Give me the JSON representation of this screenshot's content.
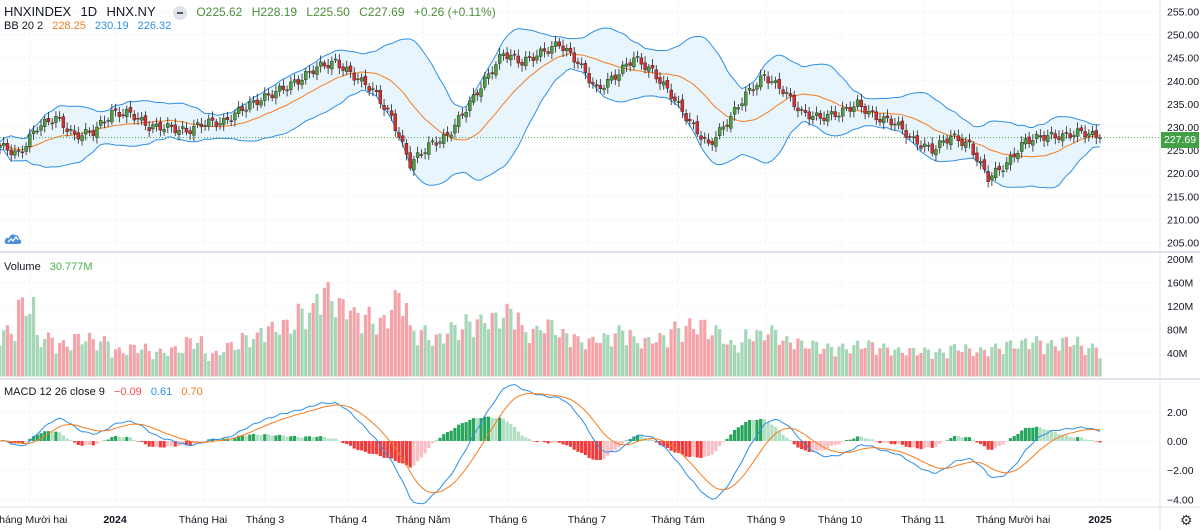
{
  "header": {
    "symbol": "HNXINDEX",
    "interval": "1D",
    "exchange": "HNX.NY",
    "open": "O225.62",
    "high": "H228.19",
    "low": "L225.50",
    "close": "C227.69",
    "change": "+0.26 (+0.11%)"
  },
  "bb": {
    "label": "BB 20 2",
    "basis": "228.25",
    "upper": "230.19",
    "lower": "226.32"
  },
  "volume": {
    "label": "Volume",
    "value": "30.777M"
  },
  "macd": {
    "label": "MACD 12 26 close 9",
    "hist": "−0.09",
    "macd": "0.61",
    "signal": "0.70"
  },
  "last_price_tag": "227.69",
  "colors": {
    "up": "#4c9f3c",
    "down": "#d32f2f",
    "vol_up": "#a5d6b7",
    "vol_down": "#f4a3a8",
    "bb_basis": "#f57c1f",
    "bb_band": "#2e8fe6",
    "bb_fill": "#e3f2fd",
    "macd_line": "#2e8fe6",
    "signal_line": "#f57c1f"
  },
  "icons": {
    "logo": "tradingview-cloud-icon",
    "settings": "gear-icon",
    "collapse": "minus-icon"
  },
  "chart_data": {
    "type": "candlestick",
    "title": "HNXINDEX · 1D · HNX.NY",
    "weekly_closes": [
      226,
      224,
      230,
      232,
      228,
      229,
      233,
      233,
      230,
      230,
      229,
      231,
      231,
      234,
      236,
      238,
      240,
      243,
      244,
      241,
      238,
      232,
      222,
      226,
      228,
      234,
      240,
      246,
      244,
      246,
      248,
      244,
      238,
      241,
      245,
      242,
      237,
      231,
      226,
      231,
      237,
      241,
      238,
      233,
      232,
      233,
      235,
      232,
      231,
      227,
      225,
      228,
      226,
      219,
      222,
      227,
      228,
      228,
      229,
      227.69
    ],
    "weekly_volume_m": [
      70,
      110,
      60,
      50,
      60,
      55,
      40,
      45,
      38,
      42,
      55,
      35,
      48,
      60,
      75,
      80,
      100,
      130,
      110,
      95,
      85,
      120,
      70,
      60,
      75,
      85,
      90,
      100,
      70,
      80,
      65,
      55,
      60,
      70,
      55,
      60,
      75,
      80,
      70,
      50,
      65,
      70,
      55,
      50,
      45,
      45,
      50,
      45,
      40,
      40,
      38,
      45,
      40,
      45,
      50,
      55,
      50,
      55,
      45,
      30.777
    ],
    "price_axis": {
      "ticks": [
        "255.00",
        "250.00",
        "245.00",
        "240.00",
        "235.00",
        "230.00",
        "225.00",
        "220.00",
        "215.00",
        "210.00",
        "205.00"
      ],
      "range": [
        205,
        255
      ]
    },
    "volume_axis": {
      "ticks": [
        "200M",
        "160M",
        "120M",
        "80M",
        "40M"
      ]
    },
    "macd_axis": {
      "ticks": [
        "2.00",
        "0.00",
        "−2.00",
        "−4.00"
      ]
    },
    "time_axis": [
      "Tháng Mười hai",
      "2024",
      "Tháng Hai",
      "Tháng 3",
      "Tháng 4",
      "Tháng Năm",
      "Tháng 6",
      "Tháng 7",
      "Tháng Tám",
      "Tháng 9",
      "Tháng 10",
      "Tháng 11",
      "Tháng Mười hai",
      "2025"
    ],
    "grid": true
  }
}
